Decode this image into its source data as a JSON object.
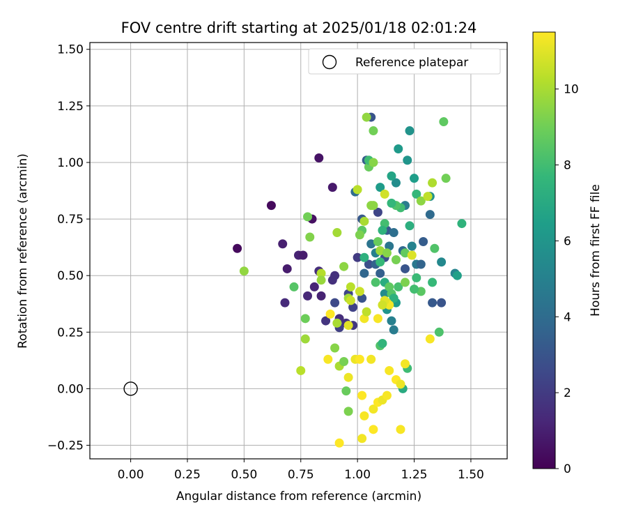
{
  "chart_data": {
    "type": "scatter",
    "title": "FOV centre drift starting at 2025/01/18 02:01:24",
    "xlabel": "Angular distance from reference (arcmin)",
    "ylabel": "Rotation from reference (arcmin)",
    "xlim": [
      -0.18,
      1.66
    ],
    "ylim": [
      -0.31,
      1.53
    ],
    "xticks": [
      "0.00",
      "0.25",
      "0.50",
      "0.75",
      "1.00",
      "1.25",
      "1.50"
    ],
    "xtick_values": [
      0,
      0.25,
      0.5,
      0.75,
      1.0,
      1.25,
      1.5
    ],
    "yticks": [
      "−0.25",
      "0.00",
      "0.25",
      "0.50",
      "0.75",
      "1.00",
      "1.25",
      "1.50"
    ],
    "ytick_values": [
      -0.25,
      0,
      0.25,
      0.5,
      0.75,
      1.0,
      1.25,
      1.5
    ],
    "grid": true,
    "legend": {
      "placement": "top-right",
      "entries": [
        "Reference platepar"
      ]
    },
    "reference_point": {
      "name": "Reference platepar",
      "x": 0.0,
      "y": 0.0
    },
    "colorbar": {
      "label": "Hours from first FF file",
      "colormap": "viridis",
      "range": [
        0,
        11.5
      ],
      "ticks": [
        "0",
        "2",
        "4",
        "6",
        "8",
        "10"
      ],
      "tick_values": [
        0,
        2,
        4,
        6,
        8,
        10
      ],
      "colors": [
        "#440154",
        "#482878",
        "#3e4989",
        "#31688e",
        "#26828e",
        "#1f9e89",
        "#35b779",
        "#6ece58",
        "#b5de2b",
        "#fde725"
      ]
    },
    "points": [
      {
        "x": 0.47,
        "y": 0.62,
        "h": 0.3
      },
      {
        "x": 0.62,
        "y": 0.81,
        "h": 0.3
      },
      {
        "x": 0.83,
        "y": 1.02,
        "h": 0.6
      },
      {
        "x": 0.89,
        "y": 0.89,
        "h": 0.8
      },
      {
        "x": 0.67,
        "y": 0.64,
        "h": 1.0
      },
      {
        "x": 0.69,
        "y": 0.53,
        "h": 0.9
      },
      {
        "x": 0.74,
        "y": 0.59,
        "h": 1.1
      },
      {
        "x": 0.76,
        "y": 0.59,
        "h": 0.9
      },
      {
        "x": 0.8,
        "y": 0.75,
        "h": 0.5
      },
      {
        "x": 0.68,
        "y": 0.38,
        "h": 1.4
      },
      {
        "x": 0.78,
        "y": 0.41,
        "h": 1.3
      },
      {
        "x": 0.81,
        "y": 0.45,
        "h": 1.2
      },
      {
        "x": 0.83,
        "y": 0.52,
        "h": 1.5
      },
      {
        "x": 0.84,
        "y": 0.41,
        "h": 1.1
      },
      {
        "x": 0.86,
        "y": 0.3,
        "h": 1.8
      },
      {
        "x": 0.89,
        "y": 0.48,
        "h": 1.6
      },
      {
        "x": 0.9,
        "y": 0.5,
        "h": 1.6
      },
      {
        "x": 0.9,
        "y": 0.38,
        "h": 2.6
      },
      {
        "x": 0.92,
        "y": 0.31,
        "h": 1.5
      },
      {
        "x": 0.92,
        "y": 0.27,
        "h": 2.2
      },
      {
        "x": 0.95,
        "y": 0.29,
        "h": 1.7
      },
      {
        "x": 0.96,
        "y": 0.42,
        "h": 2.4
      },
      {
        "x": 0.98,
        "y": 0.36,
        "h": 2.3
      },
      {
        "x": 0.98,
        "y": 0.28,
        "h": 1.9
      },
      {
        "x": 1.0,
        "y": 0.58,
        "h": 2.0
      },
      {
        "x": 1.02,
        "y": 0.4,
        "h": 3.0
      },
      {
        "x": 1.04,
        "y": 1.01,
        "h": 3.4
      },
      {
        "x": 0.99,
        "y": 0.87,
        "h": 4.1
      },
      {
        "x": 1.02,
        "y": 0.75,
        "h": 3.2
      },
      {
        "x": 1.05,
        "y": 0.55,
        "h": 2.8
      },
      {
        "x": 1.08,
        "y": 0.55,
        "h": 3.6
      },
      {
        "x": 1.09,
        "y": 0.78,
        "h": 2.4
      },
      {
        "x": 1.1,
        "y": 0.51,
        "h": 3.5
      },
      {
        "x": 1.12,
        "y": 0.58,
        "h": 2.8
      },
      {
        "x": 1.13,
        "y": 0.7,
        "h": 3.3
      },
      {
        "x": 1.14,
        "y": 0.63,
        "h": 4.5
      },
      {
        "x": 1.16,
        "y": 0.69,
        "h": 4.2
      },
      {
        "x": 1.17,
        "y": 0.91,
        "h": 5.6
      },
      {
        "x": 1.18,
        "y": 1.06,
        "h": 6.2
      },
      {
        "x": 1.2,
        "y": 0.61,
        "h": 3.9
      },
      {
        "x": 1.21,
        "y": 0.53,
        "h": 3.0
      },
      {
        "x": 1.21,
        "y": 0.81,
        "h": 4.8
      },
      {
        "x": 1.22,
        "y": 1.01,
        "h": 6.0
      },
      {
        "x": 1.23,
        "y": 1.14,
        "h": 5.9
      },
      {
        "x": 1.24,
        "y": 0.63,
        "h": 5.1
      },
      {
        "x": 1.26,
        "y": 0.55,
        "h": 4.6
      },
      {
        "x": 1.28,
        "y": 0.55,
        "h": 3.7
      },
      {
        "x": 1.29,
        "y": 0.65,
        "h": 3.4
      },
      {
        "x": 1.32,
        "y": 0.77,
        "h": 4.0
      },
      {
        "x": 1.33,
        "y": 0.38,
        "h": 3.2
      },
      {
        "x": 1.37,
        "y": 0.38,
        "h": 3.0
      },
      {
        "x": 1.37,
        "y": 0.56,
        "h": 5.4
      },
      {
        "x": 1.43,
        "y": 0.51,
        "h": 5.2
      },
      {
        "x": 1.44,
        "y": 0.5,
        "h": 6.5
      },
      {
        "x": 1.32,
        "y": 0.85,
        "h": 5.8
      },
      {
        "x": 1.25,
        "y": 0.93,
        "h": 6.4
      },
      {
        "x": 1.15,
        "y": 0.94,
        "h": 6.7
      },
      {
        "x": 1.1,
        "y": 0.89,
        "h": 6.3
      },
      {
        "x": 1.06,
        "y": 1.2,
        "h": 3.0
      },
      {
        "x": 1.12,
        "y": 0.42,
        "h": 5.5
      },
      {
        "x": 1.15,
        "y": 0.3,
        "h": 5.0
      },
      {
        "x": 1.16,
        "y": 0.26,
        "h": 4.8
      },
      {
        "x": 1.13,
        "y": 0.35,
        "h": 6.0
      },
      {
        "x": 1.17,
        "y": 0.38,
        "h": 6.3
      },
      {
        "x": 1.03,
        "y": 0.51,
        "h": 3.8
      },
      {
        "x": 1.06,
        "y": 0.64,
        "h": 4.4
      },
      {
        "x": 1.08,
        "y": 0.6,
        "h": 5.0
      },
      {
        "x": 1.46,
        "y": 0.73,
        "h": 7.4
      },
      {
        "x": 1.26,
        "y": 0.86,
        "h": 7.6
      },
      {
        "x": 1.39,
        "y": 0.93,
        "h": 9.0
      },
      {
        "x": 1.38,
        "y": 1.18,
        "h": 8.6
      },
      {
        "x": 1.36,
        "y": 0.25,
        "h": 8.2
      },
      {
        "x": 1.34,
        "y": 0.62,
        "h": 8.3
      },
      {
        "x": 1.33,
        "y": 0.47,
        "h": 7.7
      },
      {
        "x": 1.28,
        "y": 0.43,
        "h": 8.5
      },
      {
        "x": 1.26,
        "y": 0.49,
        "h": 7.8
      },
      {
        "x": 1.25,
        "y": 0.44,
        "h": 8.0
      },
      {
        "x": 1.23,
        "y": 0.72,
        "h": 7.2
      },
      {
        "x": 1.19,
        "y": 0.8,
        "h": 7.9
      },
      {
        "x": 1.17,
        "y": 0.81,
        "h": 8.3
      },
      {
        "x": 1.15,
        "y": 0.82,
        "h": 7.6
      },
      {
        "x": 1.12,
        "y": 0.73,
        "h": 8.0
      },
      {
        "x": 1.11,
        "y": 0.7,
        "h": 7.4
      },
      {
        "x": 1.09,
        "y": 0.65,
        "h": 8.8
      },
      {
        "x": 1.08,
        "y": 0.47,
        "h": 8.2
      },
      {
        "x": 1.1,
        "y": 0.56,
        "h": 7.7
      },
      {
        "x": 1.12,
        "y": 0.47,
        "h": 7.1
      },
      {
        "x": 1.14,
        "y": 0.45,
        "h": 8.6
      },
      {
        "x": 1.15,
        "y": 0.42,
        "h": 8.4
      },
      {
        "x": 1.16,
        "y": 0.4,
        "h": 7.3
      },
      {
        "x": 1.18,
        "y": 0.45,
        "h": 8.1
      },
      {
        "x": 1.21,
        "y": 0.47,
        "h": 9.2
      },
      {
        "x": 1.22,
        "y": 0.09,
        "h": 7.9
      },
      {
        "x": 1.2,
        "y": 0.0,
        "h": 7.0
      },
      {
        "x": 1.1,
        "y": 0.19,
        "h": 8.3
      },
      {
        "x": 1.11,
        "y": 0.2,
        "h": 7.5
      },
      {
        "x": 1.03,
        "y": 0.58,
        "h": 7.3
      },
      {
        "x": 1.02,
        "y": 0.7,
        "h": 8.5
      },
      {
        "x": 1.05,
        "y": 0.98,
        "h": 8.8
      },
      {
        "x": 1.05,
        "y": 1.01,
        "h": 7.9
      },
      {
        "x": 1.07,
        "y": 1.0,
        "h": 9.4
      },
      {
        "x": 1.07,
        "y": 1.14,
        "h": 9.0
      },
      {
        "x": 1.04,
        "y": 1.2,
        "h": 9.6
      },
      {
        "x": 1.0,
        "y": 0.88,
        "h": 10.3
      },
      {
        "x": 1.06,
        "y": 0.81,
        "h": 9.5
      },
      {
        "x": 1.03,
        "y": 0.74,
        "h": 10.0
      },
      {
        "x": 1.01,
        "y": 0.68,
        "h": 9.2
      },
      {
        "x": 0.91,
        "y": 0.69,
        "h": 9.9
      },
      {
        "x": 0.78,
        "y": 0.76,
        "h": 9.0
      },
      {
        "x": 0.79,
        "y": 0.67,
        "h": 9.3
      },
      {
        "x": 0.72,
        "y": 0.45,
        "h": 8.4
      },
      {
        "x": 0.5,
        "y": 0.52,
        "h": 9.6
      },
      {
        "x": 0.77,
        "y": 0.31,
        "h": 8.9
      },
      {
        "x": 0.77,
        "y": 0.22,
        "h": 9.8
      },
      {
        "x": 0.75,
        "y": 0.08,
        "h": 10.3
      },
      {
        "x": 0.9,
        "y": 0.18,
        "h": 9.4
      },
      {
        "x": 0.92,
        "y": 0.1,
        "h": 10.0
      },
      {
        "x": 0.94,
        "y": 0.12,
        "h": 9.1
      },
      {
        "x": 0.95,
        "y": -0.01,
        "h": 8.8
      },
      {
        "x": 0.96,
        "y": -0.1,
        "h": 9.2
      },
      {
        "x": 0.94,
        "y": 0.54,
        "h": 9.5
      },
      {
        "x": 0.84,
        "y": 0.51,
        "h": 10.2
      },
      {
        "x": 0.84,
        "y": 0.48,
        "h": 9.7
      },
      {
        "x": 0.97,
        "y": 0.45,
        "h": 10.3
      },
      {
        "x": 0.96,
        "y": 0.4,
        "h": 9.9
      },
      {
        "x": 0.97,
        "y": 0.39,
        "h": 10.6
      },
      {
        "x": 1.01,
        "y": 0.43,
        "h": 10.6
      },
      {
        "x": 0.91,
        "y": 0.29,
        "h": 10.0
      },
      {
        "x": 1.1,
        "y": 0.61,
        "h": 9.8
      },
      {
        "x": 1.13,
        "y": 0.6,
        "h": 9.4
      },
      {
        "x": 1.17,
        "y": 0.57,
        "h": 9.1
      },
      {
        "x": 1.21,
        "y": 0.6,
        "h": 8.7
      },
      {
        "x": 1.24,
        "y": 0.59,
        "h": 10.9
      },
      {
        "x": 1.28,
        "y": 0.83,
        "h": 9.5
      },
      {
        "x": 1.31,
        "y": 0.85,
        "h": 10.4
      },
      {
        "x": 1.33,
        "y": 0.91,
        "h": 10.1
      },
      {
        "x": 1.12,
        "y": 0.86,
        "h": 10.7
      },
      {
        "x": 1.07,
        "y": 0.81,
        "h": 9.5
      },
      {
        "x": 1.13,
        "y": 0.38,
        "h": 10.9
      },
      {
        "x": 1.14,
        "y": 0.37,
        "h": 11.3
      },
      {
        "x": 1.12,
        "y": 0.39,
        "h": 11.0
      },
      {
        "x": 1.11,
        "y": 0.37,
        "h": 10.7
      },
      {
        "x": 1.09,
        "y": 0.31,
        "h": 11.4
      },
      {
        "x": 1.03,
        "y": 0.31,
        "h": 11.3
      },
      {
        "x": 1.04,
        "y": 0.34,
        "h": 10.4
      },
      {
        "x": 0.96,
        "y": 0.28,
        "h": 11.0
      },
      {
        "x": 0.88,
        "y": 0.33,
        "h": 11.5
      },
      {
        "x": 0.87,
        "y": 0.13,
        "h": 11.4
      },
      {
        "x": 0.99,
        "y": 0.13,
        "h": 11.2
      },
      {
        "x": 1.01,
        "y": 0.13,
        "h": 11.5
      },
      {
        "x": 1.06,
        "y": 0.13,
        "h": 11.3
      },
      {
        "x": 0.96,
        "y": 0.05,
        "h": 11.2
      },
      {
        "x": 1.14,
        "y": 0.08,
        "h": 11.4
      },
      {
        "x": 1.17,
        "y": 0.04,
        "h": 11.5
      },
      {
        "x": 1.19,
        "y": 0.02,
        "h": 11.2
      },
      {
        "x": 1.21,
        "y": 0.11,
        "h": 11.3
      },
      {
        "x": 1.02,
        "y": -0.03,
        "h": 11.5
      },
      {
        "x": 1.03,
        "y": -0.12,
        "h": 11.4
      },
      {
        "x": 1.07,
        "y": -0.09,
        "h": 11.3
      },
      {
        "x": 1.09,
        "y": -0.06,
        "h": 11.5
      },
      {
        "x": 1.11,
        "y": -0.05,
        "h": 11.2
      },
      {
        "x": 1.13,
        "y": -0.03,
        "h": 11.4
      },
      {
        "x": 1.07,
        "y": -0.18,
        "h": 11.5
      },
      {
        "x": 1.19,
        "y": -0.18,
        "h": 11.4
      },
      {
        "x": 0.92,
        "y": -0.24,
        "h": 11.5
      },
      {
        "x": 1.02,
        "y": -0.22,
        "h": 11.3
      },
      {
        "x": 1.32,
        "y": 0.22,
        "h": 11.4
      }
    ]
  }
}
